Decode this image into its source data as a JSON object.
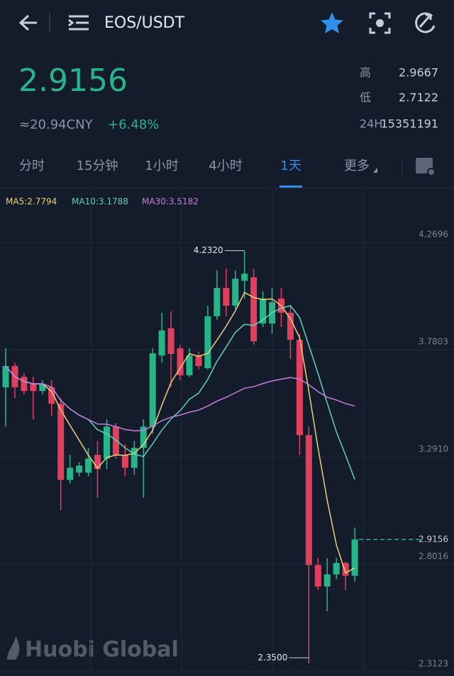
{
  "header": {
    "pair": "EOS/USDT",
    "price": 2.9156,
    "cny": "≈20.94CNY",
    "change": "+6.48%"
  },
  "stats": [
    {
      "label": "高",
      "value": 2.9667
    },
    {
      "label": "低",
      "value": 2.7122
    },
    {
      "label": "24H",
      "value": 15351191
    }
  ],
  "tabs": [
    "分时",
    "15分钟",
    "1小时",
    "4小时",
    "1天",
    "更多"
  ],
  "active_tab": 4,
  "watermark": "Huobi Global",
  "chart_data": {
    "type": "candlestick",
    "indicators": [
      {
        "label": "MA5:2.7794",
        "color": "#e8d27a",
        "period": 5
      },
      {
        "label": "MA10:3.1788",
        "color": "#5fd3b8",
        "period": 10
      },
      {
        "label": "MA30:3.5182",
        "color": "#c77ddf",
        "period": 30
      }
    ],
    "up_color": "#26b489",
    "down_color": "#e0405e",
    "ylim": [
      2.3123,
      4.516
    ],
    "yticks": [
      4.2696,
      3.7803,
      {
        "value": 3.291,
        "label": "3.2910"
      },
      2.8016,
      2.3123
    ],
    "last_price": 2.9156,
    "annotations": [
      {
        "label": "4.2320",
        "value": 4.232,
        "index": 26
      },
      {
        "label": "2.3500",
        "value": 2.35,
        "index": 33
      }
    ],
    "ohlc": [
      [
        3.609,
        3.787,
        3.43,
        3.706
      ],
      [
        3.706,
        3.722,
        3.56,
        3.609
      ],
      [
        3.657,
        3.673,
        3.576,
        3.592
      ],
      [
        3.625,
        3.657,
        3.463,
        3.592
      ],
      [
        3.592,
        3.641,
        3.576,
        3.625
      ],
      [
        3.609,
        3.641,
        3.479,
        3.534
      ],
      [
        3.534,
        3.56,
        3.048,
        3.187
      ],
      [
        3.187,
        3.301,
        3.171,
        3.242
      ],
      [
        3.22,
        3.268,
        3.203,
        3.252
      ],
      [
        3.22,
        3.333,
        3.203,
        3.284
      ],
      [
        3.301,
        3.365,
        3.106,
        3.236
      ],
      [
        3.284,
        3.463,
        3.236,
        3.43
      ],
      [
        3.43,
        3.446,
        3.284,
        3.301
      ],
      [
        3.301,
        3.349,
        3.203,
        3.242
      ],
      [
        3.242,
        3.365,
        3.21,
        3.333
      ],
      [
        3.333,
        3.463,
        3.106,
        3.43
      ],
      [
        3.43,
        3.787,
        3.398,
        3.764
      ],
      [
        3.754,
        3.949,
        3.722,
        3.868
      ],
      [
        3.878,
        3.955,
        3.609,
        3.761
      ],
      [
        3.787,
        3.803,
        3.641,
        3.664
      ],
      [
        3.664,
        3.787,
        3.657,
        3.754
      ],
      [
        3.754,
        3.771,
        3.69,
        3.706
      ],
      [
        3.696,
        3.981,
        3.69,
        3.933
      ],
      [
        3.933,
        4.143,
        3.916,
        4.062
      ],
      [
        4.062,
        4.15,
        3.933,
        3.981
      ],
      [
        3.981,
        4.143,
        3.965,
        4.104
      ],
      [
        4.095,
        4.232,
        4.014,
        4.127
      ],
      [
        4.111,
        4.15,
        3.803,
        3.819
      ],
      [
        3.9,
        4.046,
        3.884,
        4.014
      ],
      [
        3.9,
        4.062,
        3.852,
        3.997
      ],
      [
        4.014,
        4.062,
        3.884,
        3.949
      ],
      [
        3.949,
        3.981,
        3.738,
        3.826
      ],
      [
        3.826,
        3.852,
        3.301,
        3.391
      ],
      [
        3.391,
        3.43,
        2.35,
        2.799
      ],
      [
        2.799,
        2.831,
        2.685,
        2.701
      ],
      [
        2.701,
        2.831,
        2.588,
        2.756
      ],
      [
        2.756,
        2.831,
        2.734,
        2.808
      ],
      [
        2.808,
        2.815,
        2.685,
        2.75
      ],
      [
        2.75,
        2.97,
        2.724,
        2.9156
      ]
    ]
  }
}
